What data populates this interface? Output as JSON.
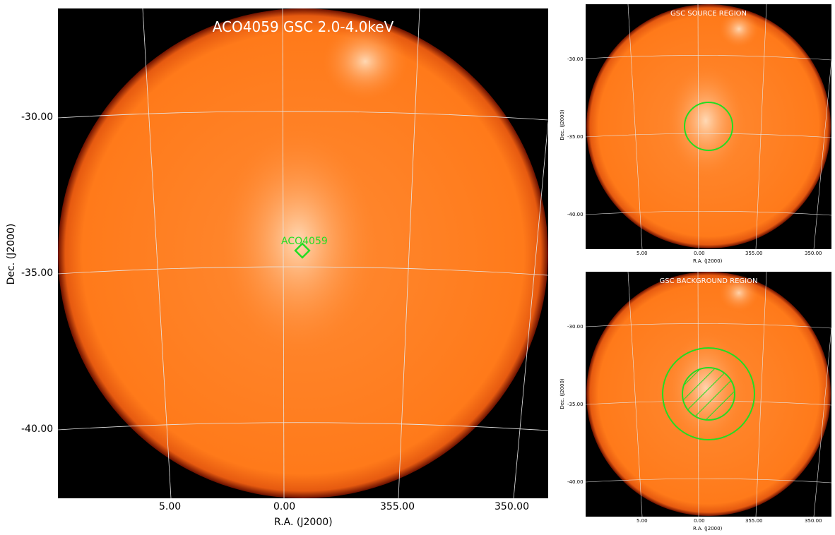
{
  "main": {
    "title": "ACO4059 GSC 2.0-4.0keV",
    "source_label": "ACO4059",
    "x_axis_label": "R.A. (J2000)",
    "y_axis_label": "Dec. (J2000)",
    "x_ticks": [
      "5.00",
      "0.00",
      "355.00",
      "350.00"
    ],
    "y_ticks": [
      "-30.00",
      "-35.00",
      "-40.00"
    ]
  },
  "source_panel": {
    "title": "GSC SOURCE REGION",
    "x_axis_label": "R.A. (J2000)",
    "y_axis_label": "Dec. (J2000)",
    "x_ticks": [
      "5.00",
      "0.00",
      "355.00",
      "350.00"
    ],
    "y_ticks": [
      "-30.00",
      "-35.00",
      "-40.00"
    ]
  },
  "background_panel": {
    "title": "GSC BACKGROUND REGION",
    "x_axis_label": "R.A. (J2000)",
    "y_axis_label": "Dec. (J2000)",
    "x_ticks": [
      "5.00",
      "0.00",
      "355.00",
      "350.00"
    ],
    "y_ticks": [
      "-30.00",
      "-35.00",
      "-40.00"
    ]
  },
  "colors": {
    "disk": "#ff7a1a",
    "disk_edge": "#8a1a00",
    "grid": "#e6e6e6",
    "region": "#22dd22",
    "bright": "#ffd9b0"
  }
}
